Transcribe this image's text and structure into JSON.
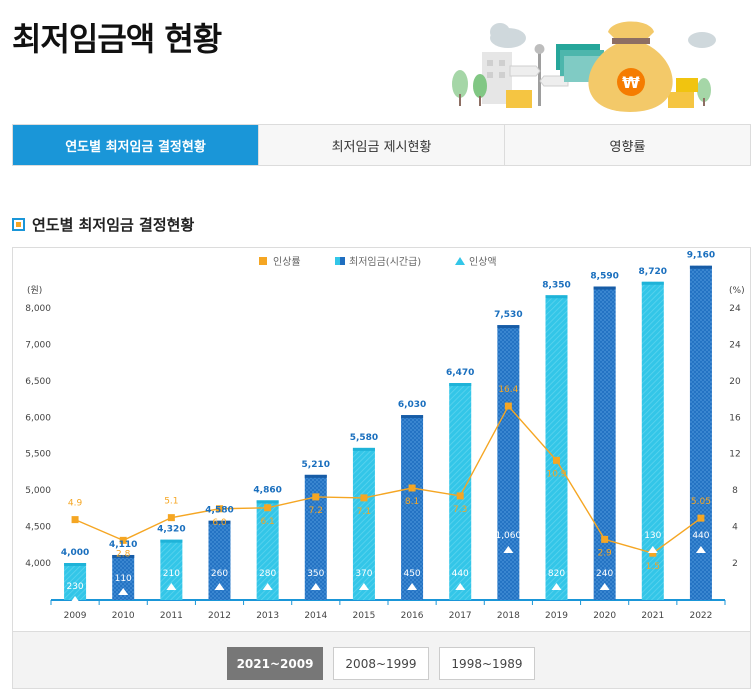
{
  "page_title": "최저임금액 현황",
  "tabs": [
    {
      "label": "연도별 최저임금 결정현황",
      "active": true
    },
    {
      "label": "최저임금 제시현황",
      "active": false
    },
    {
      "label": "영향률",
      "active": false
    }
  ],
  "section_title": "연도별 최저임금 결정현황",
  "hero_currency_symbol": "₩",
  "chart_data": {
    "type": "bar",
    "categories": [
      "2009",
      "2010",
      "2011",
      "2012",
      "2013",
      "2014",
      "2015",
      "2016",
      "2017",
      "2018",
      "2019",
      "2020",
      "2021",
      "2022"
    ],
    "series": [
      {
        "name": "최저임금(시간급)",
        "type": "bar",
        "axis": "left",
        "values": [
          4000,
          4110,
          4320,
          4580,
          4860,
          5210,
          5580,
          6030,
          6470,
          7530,
          8350,
          8590,
          8720,
          9160
        ],
        "labels": [
          "4,000",
          "4,110",
          "4,320",
          "4,580",
          "4,860",
          "5,210",
          "5,580",
          "6,030",
          "6,470",
          "7,530",
          "8,350",
          "8,590",
          "8,720",
          "9,160"
        ]
      },
      {
        "name": "인상률",
        "type": "line",
        "axis": "right",
        "values": [
          4.9,
          2.8,
          5.1,
          6.0,
          6.1,
          7.2,
          7.1,
          8.1,
          7.3,
          16.4,
          10.9,
          2.9,
          1.5,
          5.05
        ],
        "labels": [
          "4.9",
          "2.8",
          "5.1",
          "6.0",
          "6.1",
          "7.2",
          "7.1",
          "8.1",
          "7.3",
          "16.4",
          "10.9",
          "2.9",
          "1.5",
          "5.05"
        ]
      },
      {
        "name": "인상액",
        "type": "marker",
        "values": [
          230,
          110,
          210,
          260,
          280,
          350,
          370,
          450,
          440,
          1060,
          820,
          240,
          130,
          440
        ],
        "labels": [
          "230",
          "110",
          "210",
          "260",
          "280",
          "350",
          "370",
          "450",
          "440",
          "1,060",
          "820",
          "240",
          "130",
          "440"
        ]
      }
    ],
    "ylabel_left": "(원)",
    "ylabel_right": "(%)",
    "y_left_ticks": [
      "8,000",
      "7,000",
      "6,500",
      "6,000",
      "5,500",
      "5,000",
      "4,500",
      "4,000"
    ],
    "y_right_ticks": [
      "24",
      "24",
      "20",
      "16",
      "12",
      "8",
      "4",
      "2"
    ],
    "legend_position": "top",
    "colors": {
      "bar_light": "#33c6e8",
      "bar_dark": "#1e6ec0",
      "line": "#f5a623",
      "marker": "#ffffff"
    }
  },
  "range_buttons": [
    {
      "label": "2021~2009",
      "active": true
    },
    {
      "label": "2008~1999",
      "active": false
    },
    {
      "label": "1998~1989",
      "active": false
    }
  ]
}
